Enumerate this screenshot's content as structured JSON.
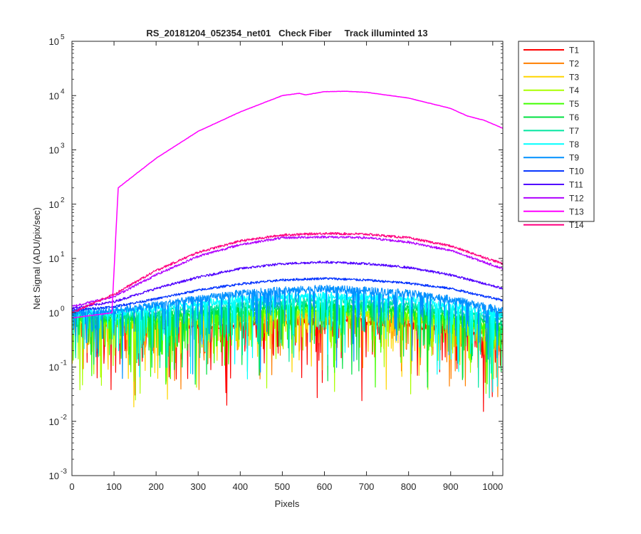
{
  "chart_data": {
    "type": "line",
    "title": "RS_20181204_052354_net01   Check Fiber     Track illuminted 13",
    "xlabel": "Pixels",
    "ylabel": "Net Signal (ADU/pix/sec)",
    "xlim": [
      0,
      1024
    ],
    "ylim": [
      0.001,
      100000
    ],
    "yscale": "log",
    "grid": false,
    "legend_position": "outside-top-right",
    "xticks": [
      0,
      100,
      200,
      300,
      400,
      500,
      600,
      700,
      800,
      900,
      1000
    ],
    "xtick_labels": [
      "0",
      "100",
      "200",
      "300",
      "400",
      "500",
      "600",
      "700",
      "800",
      "900",
      "1000"
    ],
    "ytick_exponents": [
      "-3",
      "-2",
      "-1",
      "0",
      "1",
      "2",
      "3",
      "4",
      "5"
    ],
    "ytick_base": "10",
    "series": [
      {
        "name": "T1",
        "color": "#ff0000",
        "x": [
          0,
          100,
          200,
          300,
          400,
          500,
          600,
          700,
          800,
          900,
          1024
        ],
        "y": [
          0.8,
          0.6,
          0.5,
          0.6,
          0.6,
          0.7,
          0.7,
          0.7,
          0.6,
          0.5,
          0.3
        ]
      },
      {
        "name": "T2",
        "color": "#ff7f00",
        "x": [
          0,
          100,
          200,
          300,
          400,
          500,
          600,
          700,
          800,
          900,
          1024
        ],
        "y": [
          0.8,
          0.6,
          0.6,
          0.7,
          0.8,
          0.9,
          0.9,
          0.9,
          0.8,
          0.6,
          0.4
        ]
      },
      {
        "name": "T3",
        "color": "#ffd500",
        "x": [
          0,
          100,
          200,
          300,
          400,
          500,
          600,
          700,
          800,
          900,
          1024
        ],
        "y": [
          0.8,
          0.6,
          0.6,
          0.7,
          0.8,
          0.9,
          1.0,
          0.9,
          0.8,
          0.7,
          0.4
        ]
      },
      {
        "name": "T4",
        "color": "#aaff00",
        "x": [
          0,
          100,
          200,
          300,
          400,
          500,
          600,
          700,
          800,
          900,
          1024
        ],
        "y": [
          0.8,
          0.7,
          0.7,
          0.8,
          0.9,
          1.0,
          1.1,
          1.0,
          0.9,
          0.7,
          0.5
        ]
      },
      {
        "name": "T5",
        "color": "#40ff00",
        "x": [
          0,
          100,
          200,
          300,
          400,
          500,
          600,
          700,
          800,
          900,
          1024
        ],
        "y": [
          0.8,
          0.7,
          0.8,
          0.9,
          1.0,
          1.2,
          1.2,
          1.2,
          1.0,
          0.8,
          0.5
        ]
      },
      {
        "name": "T6",
        "color": "#00e040",
        "x": [
          0,
          100,
          200,
          300,
          400,
          500,
          600,
          700,
          800,
          900,
          1024
        ],
        "y": [
          0.9,
          0.8,
          0.9,
          1.0,
          1.2,
          1.3,
          1.4,
          1.3,
          1.2,
          0.9,
          0.6
        ]
      },
      {
        "name": "T7",
        "color": "#00e6a0",
        "x": [
          0,
          100,
          200,
          300,
          400,
          500,
          600,
          700,
          800,
          900,
          1024
        ],
        "y": [
          0.9,
          0.9,
          1.0,
          1.2,
          1.4,
          1.6,
          1.7,
          1.6,
          1.4,
          1.1,
          0.7
        ]
      },
      {
        "name": "T8",
        "color": "#00ffff",
        "x": [
          0,
          100,
          200,
          300,
          400,
          500,
          600,
          700,
          800,
          900,
          1024
        ],
        "y": [
          1.0,
          1.0,
          1.2,
          1.5,
          1.8,
          2.0,
          2.1,
          2.0,
          1.8,
          1.4,
          0.9
        ]
      },
      {
        "name": "T9",
        "color": "#0090ff",
        "x": [
          0,
          100,
          200,
          300,
          400,
          500,
          600,
          700,
          800,
          900,
          1024
        ],
        "y": [
          1.0,
          1.1,
          1.4,
          1.8,
          2.3,
          2.6,
          2.8,
          2.6,
          2.3,
          1.8,
          1.1
        ]
      },
      {
        "name": "T10",
        "color": "#0030ff",
        "x": [
          0,
          100,
          200,
          300,
          400,
          500,
          600,
          700,
          800,
          900,
          1024
        ],
        "y": [
          1.1,
          1.3,
          1.8,
          2.6,
          3.4,
          4.0,
          4.3,
          4.0,
          3.5,
          2.8,
          1.7
        ]
      },
      {
        "name": "T11",
        "color": "#5000ff",
        "x": [
          0,
          100,
          200,
          300,
          400,
          500,
          600,
          700,
          800,
          900,
          1024
        ],
        "y": [
          1.2,
          1.6,
          2.8,
          4.5,
          6.5,
          8.0,
          8.6,
          8.0,
          6.8,
          5.0,
          2.8
        ]
      },
      {
        "name": "T12",
        "color": "#b000ff",
        "x": [
          0,
          100,
          200,
          300,
          400,
          500,
          600,
          700,
          800,
          900,
          1024
        ],
        "y": [
          1.3,
          2.0,
          5.0,
          11.0,
          18.0,
          24.0,
          25.0,
          24.0,
          20.0,
          14.0,
          6.5
        ]
      },
      {
        "name": "T13",
        "color": "#ff00ff",
        "x": [
          0,
          95,
          110,
          150,
          200,
          300,
          400,
          500,
          540,
          555,
          600,
          650,
          700,
          800,
          900,
          940,
          980,
          1024
        ],
        "y": [
          0.8,
          1.0,
          200,
          350,
          700,
          2200,
          5000,
          10000,
          11000,
          10300,
          11800,
          12000,
          11500,
          9000,
          5800,
          4200,
          3500,
          2500
        ]
      },
      {
        "name": "T14",
        "color": "#ff0080",
        "x": [
          0,
          100,
          200,
          300,
          400,
          500,
          600,
          700,
          800,
          900,
          1024
        ],
        "y": [
          1.0,
          2.2,
          6.0,
          13.0,
          21.0,
          27.0,
          29.0,
          28.0,
          24.0,
          17.0,
          8.0
        ]
      }
    ]
  }
}
